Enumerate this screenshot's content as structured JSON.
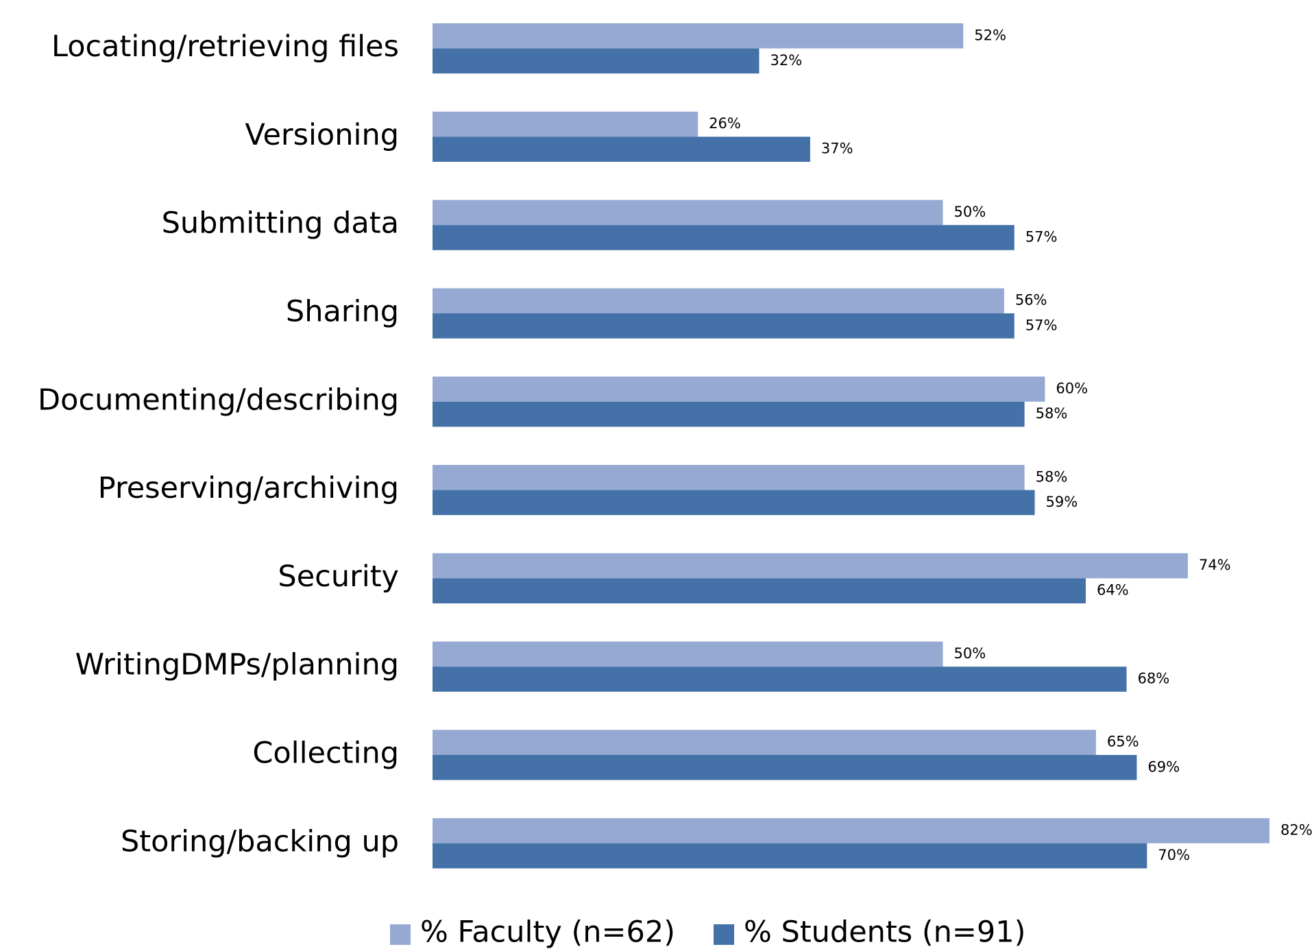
{
  "chart_data": {
    "type": "bar",
    "orientation": "horizontal",
    "categories": [
      "Locating/retrieving files",
      "Versioning",
      "Submitting data",
      "Sharing",
      "Documenting/describing",
      "Preserving/archiving",
      "Security",
      "WritingDMPs/planning",
      "Collecting",
      "Storing/backing up"
    ],
    "series": [
      {
        "name": "% Faculty (n=62)",
        "color": "#95a9d2",
        "values": [
          52,
          26,
          50,
          56,
          60,
          58,
          74,
          50,
          65,
          82
        ],
        "value_labels": [
          "52%",
          "26%",
          "50%",
          "56%",
          "60%",
          "58%",
          "74%",
          "50%",
          "65%",
          "82%"
        ]
      },
      {
        "name": "% Students (n=91)",
        "color": "#4472a8",
        "values": [
          32,
          37,
          57,
          57,
          58,
          59,
          64,
          68,
          69,
          70
        ],
        "value_labels": [
          "32%",
          "37%",
          "57%",
          "57%",
          "58%",
          "59%",
          "64%",
          "68%",
          "69%",
          "70%"
        ]
      }
    ],
    "xlim": [
      0,
      100
    ],
    "legend": "bottom"
  }
}
